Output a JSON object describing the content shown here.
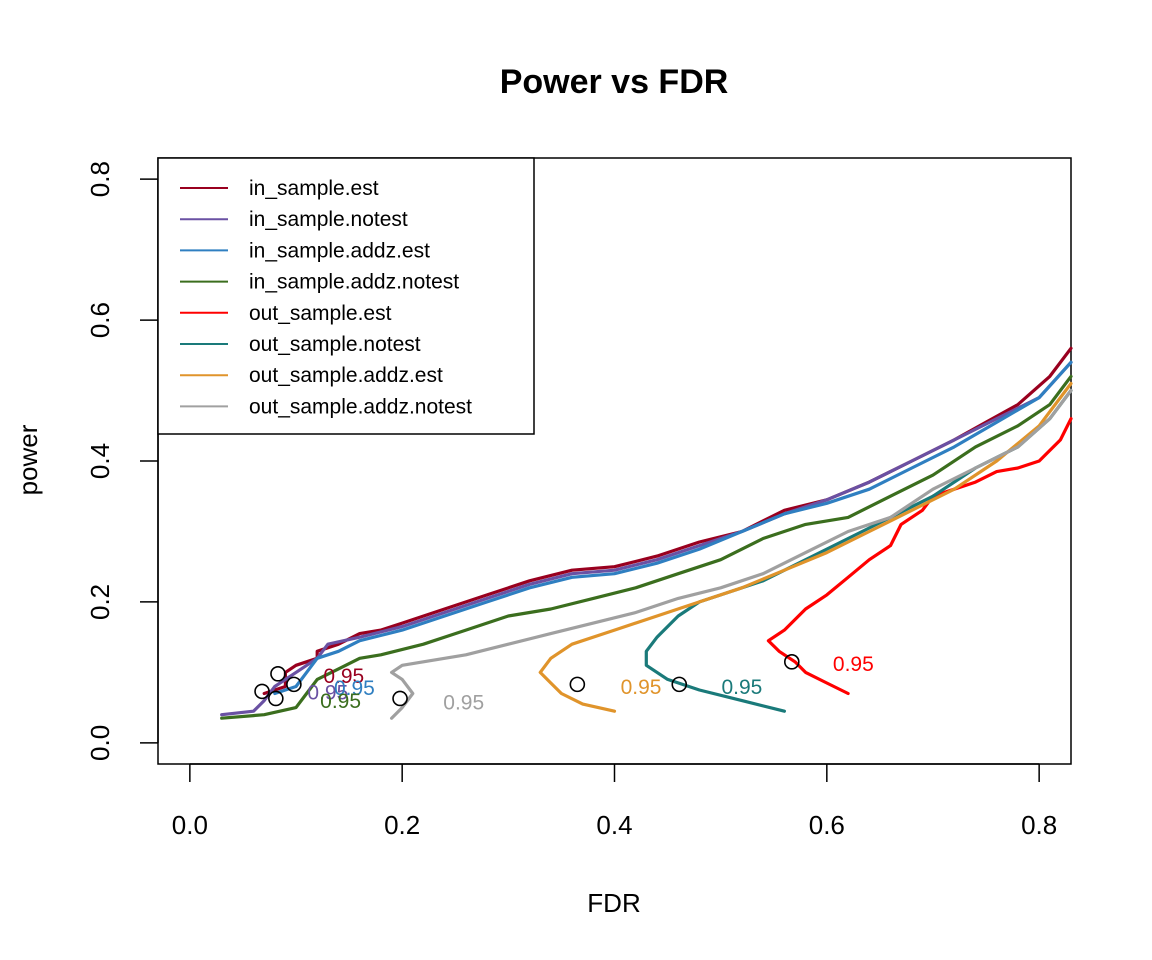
{
  "chart_data": {
    "type": "line",
    "title": "Power vs FDR",
    "xlabel": "FDR",
    "ylabel": "power",
    "xlim": [
      -0.03,
      0.83
    ],
    "ylim": [
      -0.03,
      0.83
    ],
    "x_ticks": [
      "0.0",
      "0.2",
      "0.4",
      "0.6",
      "0.8"
    ],
    "y_ticks": [
      "0.0",
      "0.2",
      "0.4",
      "0.6",
      "0.8"
    ],
    "legend_position": "top-left",
    "annotation_label": "0.95",
    "series": [
      {
        "name": "in_sample.est",
        "color": "#99001F",
        "x": [
          0.07,
          0.09,
          0.09,
          0.1,
          0.12,
          0.12,
          0.14,
          0.16,
          0.18,
          0.2,
          0.24,
          0.28,
          0.32,
          0.36,
          0.4,
          0.44,
          0.48,
          0.52,
          0.56,
          0.6,
          0.64,
          0.68,
          0.72,
          0.75,
          0.78,
          0.81,
          0.83
        ],
        "y": [
          0.07,
          0.08,
          0.1,
          0.11,
          0.12,
          0.13,
          0.14,
          0.155,
          0.16,
          0.17,
          0.19,
          0.21,
          0.23,
          0.245,
          0.25,
          0.265,
          0.285,
          0.3,
          0.33,
          0.345,
          0.37,
          0.4,
          0.43,
          0.455,
          0.48,
          0.52,
          0.56
        ],
        "marker": {
          "x": 0.083,
          "y": 0.098
        },
        "label_pos": {
          "x": 0.145,
          "y": 0.096
        }
      },
      {
        "name": "in_sample.notest",
        "color": "#6A51A3",
        "x": [
          0.03,
          0.06,
          0.07,
          0.08,
          0.09,
          0.1,
          0.12,
          0.13,
          0.16,
          0.2,
          0.24,
          0.28,
          0.32,
          0.36,
          0.4,
          0.44,
          0.48,
          0.52,
          0.56,
          0.6,
          0.64,
          0.68,
          0.72,
          0.76,
          0.8,
          0.83
        ],
        "y": [
          0.04,
          0.045,
          0.06,
          0.08,
          0.09,
          0.1,
          0.12,
          0.14,
          0.15,
          0.165,
          0.185,
          0.205,
          0.225,
          0.24,
          0.245,
          0.26,
          0.28,
          0.3,
          0.325,
          0.345,
          0.37,
          0.4,
          0.43,
          0.46,
          0.49,
          0.54
        ],
        "marker": {
          "x": 0.068,
          "y": 0.073
        },
        "label_pos": {
          "x": 0.13,
          "y": 0.073
        }
      },
      {
        "name": "in_sample.addz.est",
        "color": "#2F7FC1",
        "x": [
          0.08,
          0.1,
          0.11,
          0.12,
          0.14,
          0.16,
          0.2,
          0.24,
          0.28,
          0.32,
          0.36,
          0.4,
          0.44,
          0.48,
          0.52,
          0.56,
          0.6,
          0.64,
          0.68,
          0.72,
          0.76,
          0.8,
          0.83
        ],
        "y": [
          0.07,
          0.08,
          0.1,
          0.12,
          0.13,
          0.145,
          0.16,
          0.18,
          0.2,
          0.22,
          0.235,
          0.24,
          0.255,
          0.275,
          0.3,
          0.325,
          0.34,
          0.36,
          0.39,
          0.42,
          0.455,
          0.49,
          0.54
        ],
        "marker": {
          "x": 0.098,
          "y": 0.083
        },
        "label_pos": {
          "x": 0.155,
          "y": 0.079
        }
      },
      {
        "name": "in_sample.addz.notest",
        "color": "#3B6E1E",
        "x": [
          0.03,
          0.07,
          0.1,
          0.11,
          0.12,
          0.14,
          0.16,
          0.18,
          0.22,
          0.26,
          0.3,
          0.34,
          0.38,
          0.42,
          0.46,
          0.5,
          0.54,
          0.58,
          0.62,
          0.66,
          0.7,
          0.74,
          0.78,
          0.81,
          0.83
        ],
        "y": [
          0.035,
          0.04,
          0.05,
          0.07,
          0.09,
          0.105,
          0.12,
          0.125,
          0.14,
          0.16,
          0.18,
          0.19,
          0.205,
          0.22,
          0.24,
          0.26,
          0.29,
          0.31,
          0.32,
          0.35,
          0.38,
          0.42,
          0.45,
          0.48,
          0.52
        ],
        "marker": {
          "x": 0.081,
          "y": 0.063
        },
        "label_pos": {
          "x": 0.142,
          "y": 0.061
        }
      },
      {
        "name": "out_sample.est",
        "color": "#FF0000",
        "x": [
          0.62,
          0.6,
          0.58,
          0.57,
          0.555,
          0.545,
          0.56,
          0.58,
          0.6,
          0.62,
          0.64,
          0.66,
          0.67,
          0.69,
          0.7,
          0.72,
          0.74,
          0.76,
          0.78,
          0.8,
          0.82,
          0.83
        ],
        "y": [
          0.07,
          0.085,
          0.1,
          0.115,
          0.13,
          0.145,
          0.16,
          0.19,
          0.21,
          0.235,
          0.26,
          0.28,
          0.31,
          0.33,
          0.35,
          0.36,
          0.37,
          0.385,
          0.39,
          0.4,
          0.43,
          0.46
        ],
        "marker": {
          "x": 0.567,
          "y": 0.115
        },
        "label_pos": {
          "x": 0.625,
          "y": 0.113
        }
      },
      {
        "name": "out_sample.notest",
        "color": "#1A7A7A",
        "x": [
          0.56,
          0.52,
          0.48,
          0.45,
          0.43,
          0.43,
          0.44,
          0.46,
          0.48,
          0.5,
          0.54,
          0.58,
          0.62,
          0.66,
          0.7,
          0.74,
          0.78,
          0.81,
          0.83
        ],
        "y": [
          0.045,
          0.06,
          0.075,
          0.09,
          0.11,
          0.13,
          0.15,
          0.18,
          0.2,
          0.21,
          0.23,
          0.26,
          0.29,
          0.32,
          0.35,
          0.39,
          0.42,
          0.46,
          0.5
        ],
        "marker": {
          "x": 0.461,
          "y": 0.083
        },
        "label_pos": {
          "x": 0.52,
          "y": 0.081
        }
      },
      {
        "name": "out_sample.addz.est",
        "color": "#E0942B",
        "x": [
          0.4,
          0.37,
          0.35,
          0.34,
          0.33,
          0.34,
          0.36,
          0.4,
          0.44,
          0.48,
          0.52,
          0.56,
          0.6,
          0.64,
          0.68,
          0.72,
          0.76,
          0.8,
          0.83
        ],
        "y": [
          0.045,
          0.055,
          0.07,
          0.085,
          0.1,
          0.12,
          0.14,
          0.16,
          0.18,
          0.2,
          0.22,
          0.245,
          0.27,
          0.3,
          0.33,
          0.36,
          0.4,
          0.45,
          0.51
        ],
        "marker": {
          "x": 0.365,
          "y": 0.083
        },
        "label_pos": {
          "x": 0.425,
          "y": 0.081
        }
      },
      {
        "name": "out_sample.addz.notest",
        "color": "#A0A0A0",
        "x": [
          0.19,
          0.2,
          0.21,
          0.2,
          0.19,
          0.2,
          0.22,
          0.26,
          0.3,
          0.34,
          0.38,
          0.42,
          0.46,
          0.5,
          0.54,
          0.58,
          0.62,
          0.66,
          0.7,
          0.74,
          0.78,
          0.81,
          0.83
        ],
        "y": [
          0.035,
          0.05,
          0.07,
          0.09,
          0.1,
          0.11,
          0.115,
          0.125,
          0.14,
          0.155,
          0.17,
          0.185,
          0.205,
          0.22,
          0.24,
          0.27,
          0.3,
          0.32,
          0.36,
          0.39,
          0.42,
          0.46,
          0.5
        ],
        "marker": {
          "x": 0.198,
          "y": 0.063
        },
        "label_pos": {
          "x": 0.258,
          "y": 0.059
        }
      }
    ]
  }
}
